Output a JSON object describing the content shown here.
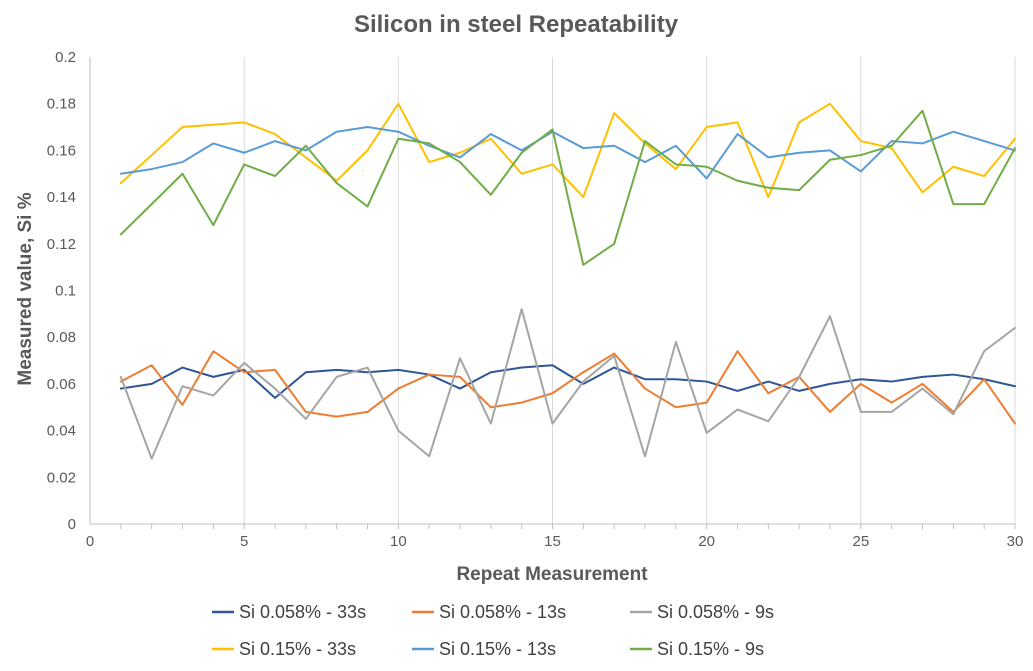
{
  "chart_data": {
    "type": "line",
    "title": "Silicon in steel Repeatability",
    "xlabel": "Repeat Measurement",
    "ylabel": "Measured value, Si %",
    "xlim": [
      0,
      30
    ],
    "ylim": [
      0,
      0.2
    ],
    "x_ticks": [
      "0",
      "5",
      "10",
      "15",
      "20",
      "25",
      "30"
    ],
    "y_ticks": [
      "0",
      "0.02",
      "0.04",
      "0.06",
      "0.08",
      "0.1",
      "0.12",
      "0.14",
      "0.16",
      "0.18",
      "0.2"
    ],
    "grid": "vertical",
    "legend_position": "bottom",
    "x": [
      1,
      2,
      3,
      4,
      5,
      6,
      7,
      8,
      9,
      10,
      11,
      12,
      13,
      14,
      15,
      16,
      17,
      18,
      19,
      20,
      21,
      22,
      23,
      24,
      25,
      26,
      27,
      28,
      29,
      30
    ],
    "series": [
      {
        "name": "Si 0.058%  - 33s",
        "color": "#2e5597",
        "values": [
          0.058,
          0.06,
          0.067,
          0.063,
          0.066,
          0.054,
          0.065,
          0.066,
          0.065,
          0.066,
          0.064,
          0.058,
          0.065,
          0.067,
          0.068,
          0.06,
          0.067,
          0.062,
          0.062,
          0.061,
          0.057,
          0.061,
          0.057,
          0.06,
          0.062,
          0.061,
          0.063,
          0.064,
          0.062,
          0.059
        ]
      },
      {
        "name": "Si 0.058%  - 13s",
        "color": "#ed7d31",
        "values": [
          0.061,
          0.068,
          0.051,
          0.074,
          0.065,
          0.066,
          0.048,
          0.046,
          0.048,
          0.058,
          0.064,
          0.063,
          0.05,
          0.052,
          0.056,
          0.065,
          0.073,
          0.058,
          0.05,
          0.052,
          0.074,
          0.056,
          0.063,
          0.048,
          0.06,
          0.052,
          0.06,
          0.048,
          0.062,
          0.043
        ]
      },
      {
        "name": "Si 0.058%   - 9s",
        "color": "#a5a5a5",
        "values": [
          0.063,
          0.028,
          0.059,
          0.055,
          0.069,
          0.058,
          0.045,
          0.063,
          0.067,
          0.04,
          0.029,
          0.071,
          0.043,
          0.092,
          0.043,
          0.061,
          0.072,
          0.029,
          0.078,
          0.039,
          0.049,
          0.044,
          0.063,
          0.089,
          0.048,
          0.048,
          0.058,
          0.047,
          0.074,
          0.084
        ]
      },
      {
        "name": "Si 0.15% - 33s",
        "color": "#ffc000",
        "values": [
          0.146,
          0.158,
          0.17,
          0.171,
          0.172,
          0.167,
          0.157,
          0.147,
          0.16,
          0.18,
          0.155,
          0.159,
          0.165,
          0.15,
          0.154,
          0.14,
          0.176,
          0.163,
          0.152,
          0.17,
          0.172,
          0.14,
          0.172,
          0.18,
          0.164,
          0.161,
          0.142,
          0.153,
          0.149,
          0.165
        ]
      },
      {
        "name": "Si 0.15% - 13s",
        "color": "#5b9bd5",
        "values": [
          0.15,
          0.152,
          0.155,
          0.163,
          0.159,
          0.164,
          0.16,
          0.168,
          0.17,
          0.168,
          0.162,
          0.157,
          0.167,
          0.16,
          0.168,
          0.161,
          0.162,
          0.155,
          0.162,
          0.148,
          0.167,
          0.157,
          0.159,
          0.16,
          0.151,
          0.164,
          0.163,
          0.168,
          0.164,
          0.16
        ]
      },
      {
        "name": "Si 0.15% - 9s",
        "color": "#70ad47",
        "values": [
          0.124,
          0.137,
          0.15,
          0.128,
          0.154,
          0.149,
          0.162,
          0.146,
          0.136,
          0.165,
          0.163,
          0.155,
          0.141,
          0.159,
          0.169,
          0.111,
          0.12,
          0.164,
          0.154,
          0.153,
          0.147,
          0.144,
          0.143,
          0.156,
          0.158,
          0.162,
          0.177,
          0.137,
          0.137,
          0.161
        ]
      }
    ]
  }
}
